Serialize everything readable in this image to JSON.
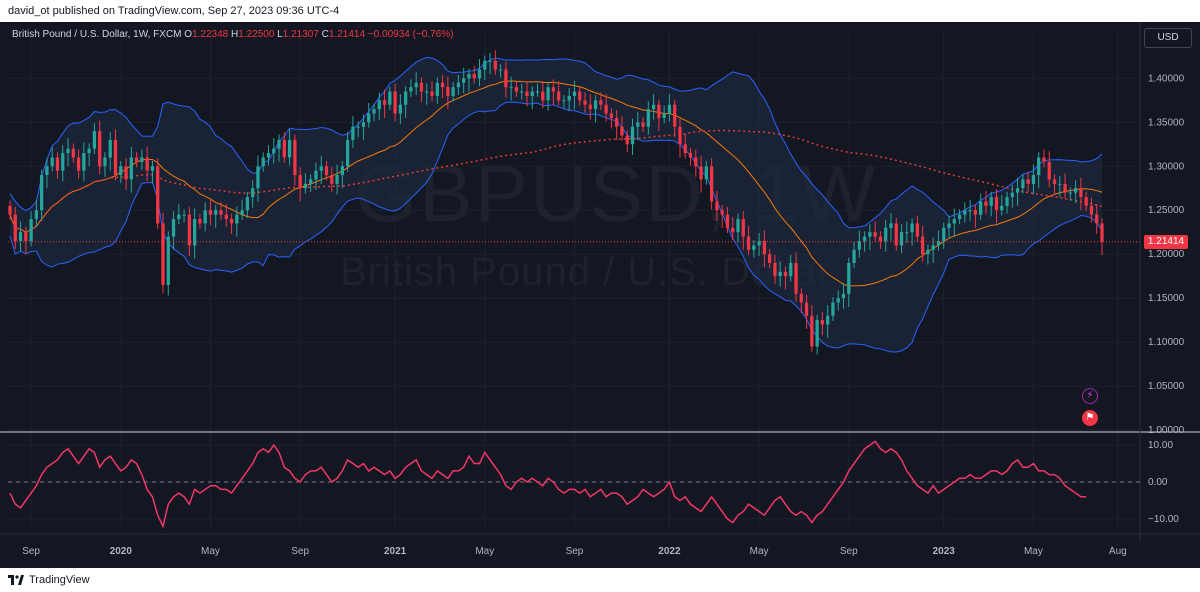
{
  "header": {
    "publisher_line": "david_ot published on TradingView.com, Sep 27, 2023 09:36 UTC-4"
  },
  "legend": {
    "symbol_line": "British Pound / U.S. Dollar, 1W, FXCM",
    "open_label": "O",
    "open_value": "1.22348",
    "high_label": "H",
    "high_value": "1.22500",
    "low_label": "L",
    "low_value": "1.21307",
    "close_label": "C",
    "close_value": "1.21414",
    "change_value": "−0.00934 (−0.76%)"
  },
  "toolbar": {
    "currency_button": "USD"
  },
  "watermark": {
    "symbol": "GBPUSD, 1W",
    "name": "British Pound / U.S. Dollar"
  },
  "price_tag": "1.21414",
  "footer": {
    "brand": "TradingView"
  },
  "colors": {
    "background": "#131722",
    "up": "#26a69a",
    "down": "#f23645",
    "band": "#2962ff",
    "band_fill": "#1e2a3d",
    "ma_orange": "#f57c00",
    "ma_dotted": "#e53935",
    "oscillator": "#f23668",
    "grid": "#1e222d",
    "axis_text": "#b2b5be"
  },
  "icons": {
    "event_badge": "bolt-icon",
    "flag_badge": "us-flag-icon",
    "logo": "tradingview-logo-icon"
  },
  "chart_data": [
    {
      "type": "candlestick",
      "title": "British Pound / U.S. Dollar, 1W, FXCM",
      "ylim": [
        1.0,
        1.43
      ],
      "y_ticks": [
        "1.40000",
        "1.35000",
        "1.30000",
        "1.25000",
        "1.20000",
        "1.15000",
        "1.10000",
        "1.05000",
        "1.00000"
      ],
      "y_tick_values": [
        1.4,
        1.35,
        1.3,
        1.25,
        1.2,
        1.15,
        1.1,
        1.05,
        1.0
      ],
      "x_labels": [
        "Sep",
        "2020",
        "May",
        "Sep",
        "2021",
        "May",
        "Sep",
        "2022",
        "May",
        "Sep",
        "2023",
        "May",
        "Aug"
      ],
      "x_label_weeks": [
        4,
        21,
        38,
        55,
        73,
        90,
        107,
        125,
        142,
        159,
        177,
        194,
        210
      ],
      "last_price": 1.21414,
      "close_series": [
        1.245,
        1.215,
        1.225,
        1.215,
        1.24,
        1.25,
        1.29,
        1.3,
        1.31,
        1.295,
        1.315,
        1.32,
        1.31,
        1.295,
        1.315,
        1.32,
        1.34,
        1.3,
        1.31,
        1.33,
        1.29,
        1.3,
        1.285,
        1.31,
        1.305,
        1.31,
        1.295,
        1.3,
        1.235,
        1.165,
        1.22,
        1.24,
        1.245,
        1.245,
        1.21,
        1.24,
        1.235,
        1.25,
        1.245,
        1.25,
        1.245,
        1.24,
        1.235,
        1.245,
        1.25,
        1.265,
        1.275,
        1.3,
        1.31,
        1.315,
        1.32,
        1.33,
        1.31,
        1.33,
        1.29,
        1.275,
        1.28,
        1.285,
        1.295,
        1.3,
        1.29,
        1.28,
        1.29,
        1.3,
        1.33,
        1.345,
        1.345,
        1.35,
        1.36,
        1.365,
        1.375,
        1.37,
        1.385,
        1.36,
        1.37,
        1.385,
        1.39,
        1.395,
        1.385,
        1.385,
        1.38,
        1.395,
        1.39,
        1.38,
        1.39,
        1.395,
        1.4,
        1.405,
        1.4,
        1.41,
        1.42,
        1.42,
        1.41,
        1.41,
        1.39,
        1.39,
        1.385,
        1.385,
        1.38,
        1.385,
        1.385,
        1.375,
        1.39,
        1.385,
        1.375,
        1.375,
        1.38,
        1.385,
        1.375,
        1.37,
        1.365,
        1.375,
        1.37,
        1.36,
        1.355,
        1.345,
        1.335,
        1.325,
        1.345,
        1.35,
        1.345,
        1.365,
        1.37,
        1.355,
        1.36,
        1.37,
        1.345,
        1.325,
        1.315,
        1.31,
        1.3,
        1.285,
        1.3,
        1.26,
        1.25,
        1.245,
        1.23,
        1.225,
        1.24,
        1.22,
        1.205,
        1.21,
        1.215,
        1.2,
        1.19,
        1.175,
        1.18,
        1.175,
        1.19,
        1.155,
        1.145,
        1.13,
        1.095,
        1.125,
        1.12,
        1.13,
        1.145,
        1.15,
        1.155,
        1.19,
        1.205,
        1.215,
        1.22,
        1.225,
        1.22,
        1.215,
        1.23,
        1.235,
        1.21,
        1.225,
        1.225,
        1.235,
        1.22,
        1.2,
        1.205,
        1.21,
        1.215,
        1.23,
        1.235,
        1.24,
        1.245,
        1.25,
        1.25,
        1.245,
        1.26,
        1.255,
        1.265,
        1.25,
        1.255,
        1.265,
        1.27,
        1.275,
        1.285,
        1.28,
        1.29,
        1.31,
        1.305,
        1.285,
        1.28,
        1.28,
        1.27,
        1.27,
        1.275,
        1.265,
        1.255,
        1.245,
        1.235,
        1.21414
      ],
      "series": [
        {
          "kind": "bollinger",
          "color": "#2962ff"
        },
        {
          "kind": "moving-average",
          "color": "#f57c00"
        },
        {
          "kind": "moving-average-dotted",
          "color": "#e53935"
        }
      ]
    },
    {
      "type": "line",
      "ylim": [
        -13,
        13
      ],
      "y_ticks": [
        "10.00",
        "0.00",
        "−10.00"
      ],
      "y_tick_values": [
        10,
        0,
        -10
      ],
      "zero_line": true,
      "values": [
        -3,
        -6,
        -7,
        -5,
        -3,
        -1,
        2,
        4,
        5,
        6,
        8,
        9,
        7,
        5,
        7,
        9,
        8,
        4,
        6,
        7,
        5,
        3,
        4,
        6,
        5,
        2,
        -2,
        -4,
        -9,
        -12,
        -6,
        -4,
        -3,
        -4,
        -6,
        -2,
        -3,
        -2,
        -1,
        -1,
        -2,
        -2,
        -3,
        -1,
        1,
        3,
        5,
        8,
        9,
        8,
        10,
        8,
        4,
        3,
        1,
        0,
        2,
        3,
        3,
        4,
        2,
        0,
        1,
        3,
        6,
        5,
        4,
        5,
        3,
        4,
        3,
        2,
        3,
        1,
        2,
        4,
        5,
        6,
        3,
        2,
        1,
        3,
        2,
        1,
        3,
        3,
        4,
        7,
        5,
        5,
        8,
        6,
        4,
        2,
        -1,
        -2,
        0,
        1,
        0,
        1,
        0,
        -1,
        1,
        0,
        -2,
        -3,
        -2,
        -2,
        -3,
        -2,
        -4,
        -3,
        -2,
        -4,
        -3,
        -3,
        -4,
        -6,
        -5,
        -4,
        -2,
        -3,
        -4,
        -3,
        -2,
        0,
        -4,
        -5,
        -4,
        -6,
        -7,
        -8,
        -6,
        -4,
        -6,
        -8,
        -10,
        -11,
        -9,
        -8,
        -6,
        -7,
        -8,
        -9,
        -7,
        -5,
        -4,
        -6,
        -8,
        -9,
        -8,
        -9,
        -11,
        -9,
        -8,
        -6,
        -4,
        -2,
        0,
        3,
        5,
        7,
        9,
        10,
        11,
        9,
        8,
        9,
        8,
        6,
        3,
        1,
        -1,
        -2,
        -3,
        -1,
        -3,
        -2,
        -1,
        0,
        1,
        1,
        2,
        1,
        1,
        2,
        3,
        3,
        2,
        3,
        5,
        6,
        4,
        4,
        5,
        3,
        3,
        2,
        2,
        1,
        -1,
        -2,
        -3,
        -4,
        -4
      ]
    }
  ]
}
